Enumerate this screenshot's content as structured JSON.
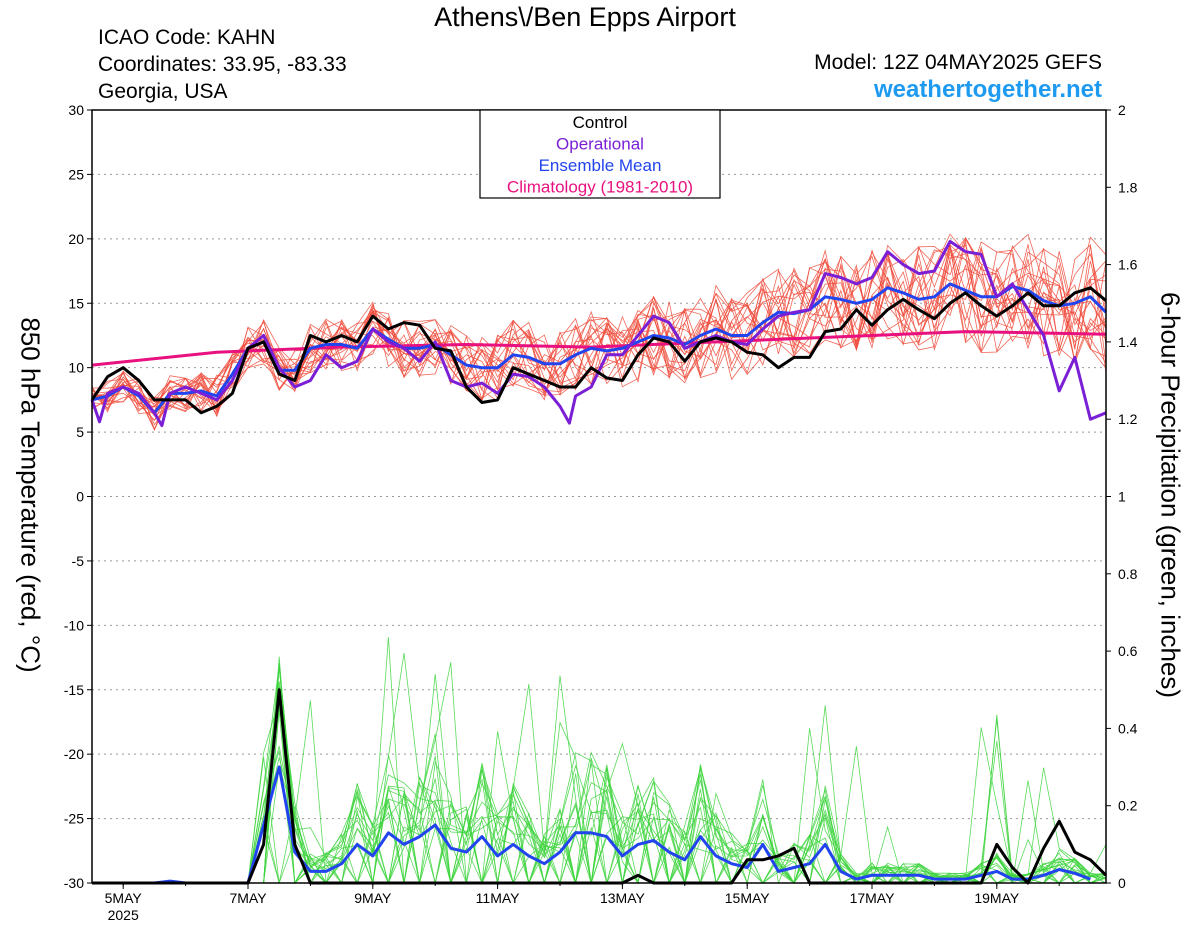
{
  "header": {
    "title": "Athens\\/Ben Epps Airport",
    "icao": "ICAO Code: KAHN",
    "coordinates": "Coordinates: 33.95, -83.33",
    "location": "Georgia, USA",
    "model": "Model: 12Z 04MAY2025 GEFS",
    "site": "weathertogether.net"
  },
  "colors": {
    "control": "#000000",
    "operational": "#7a1fd6",
    "ensemble_mean": "#2244ee",
    "climatology": "#e8117f",
    "members_temp": "#f04a3a",
    "members_precip": "#3dd43d",
    "site": "#1e9bf0"
  },
  "chart_data": {
    "type": "line",
    "ylabel": "850 hPa Temperature (red, °C)",
    "y2label": "6-hour Precipitation (green, inches)",
    "ylim": [
      -30,
      30
    ],
    "y2lim": [
      0,
      2
    ],
    "yticks": [
      "30",
      "25",
      "20",
      "15",
      "10",
      "5",
      "0",
      "-5",
      "-10",
      "-15",
      "-20",
      "-25",
      "-30"
    ],
    "y2ticks": [
      "2",
      "1.8",
      "1.6",
      "1.4",
      "1.2",
      "1",
      "0.8",
      "0.6",
      "0.4",
      "0.2",
      "0"
    ],
    "xlim": [
      0,
      16.25
    ],
    "x_unit": "days from 4 May 2025 12Z",
    "xticks": [
      {
        "label": "5MAY",
        "sub": "2025",
        "x": 0.5
      },
      {
        "label": "7MAY",
        "sub": "",
        "x": 2.5
      },
      {
        "label": "9MAY",
        "sub": "",
        "x": 4.5
      },
      {
        "label": "11MAY",
        "sub": "",
        "x": 6.5
      },
      {
        "label": "13MAY",
        "sub": "",
        "x": 8.5
      },
      {
        "label": "15MAY",
        "sub": "",
        "x": 10.5
      },
      {
        "label": "17MAY",
        "sub": "",
        "x": 12.5
      },
      {
        "label": "19MAY",
        "sub": "",
        "x": 14.5
      }
    ],
    "grid": true,
    "legend": {
      "placement": "top-center",
      "entries": [
        {
          "label": "Control",
          "color": "#000000"
        },
        {
          "label": "Operational",
          "color": "#7a1fd6"
        },
        {
          "label": "Ensemble Mean",
          "color": "#2244ee"
        },
        {
          "label": "Climatology (1981-2010)",
          "color": "#e8117f"
        }
      ]
    },
    "temperature": {
      "control": [
        [
          0,
          7.5
        ],
        [
          0.25,
          9.3
        ],
        [
          0.5,
          10
        ],
        [
          0.75,
          9
        ],
        [
          1,
          7.5
        ],
        [
          1.25,
          7.5
        ],
        [
          1.5,
          7.5
        ],
        [
          1.75,
          6.5
        ],
        [
          2,
          7
        ],
        [
          2.25,
          8
        ],
        [
          2.5,
          11.5
        ],
        [
          2.75,
          12
        ],
        [
          3,
          9.5
        ],
        [
          3.25,
          9
        ],
        [
          3.5,
          12.5
        ],
        [
          3.75,
          12
        ],
        [
          4,
          12.5
        ],
        [
          4.25,
          12
        ],
        [
          4.5,
          14
        ],
        [
          4.75,
          13
        ],
        [
          5,
          13.5
        ],
        [
          5.25,
          13.3
        ],
        [
          5.5,
          11.5
        ],
        [
          5.75,
          11.3
        ],
        [
          6,
          8.5
        ],
        [
          6.25,
          7.3
        ],
        [
          6.5,
          7.5
        ],
        [
          6.75,
          10
        ],
        [
          7,
          9.5
        ],
        [
          7.25,
          9
        ],
        [
          7.5,
          8.5
        ],
        [
          7.75,
          8.5
        ],
        [
          8,
          10
        ],
        [
          8.25,
          9.2
        ],
        [
          8.5,
          9
        ],
        [
          8.75,
          11
        ],
        [
          9,
          12.3
        ],
        [
          9.25,
          12
        ],
        [
          9.5,
          10.5
        ],
        [
          9.75,
          12
        ],
        [
          10,
          12.3
        ],
        [
          10.25,
          12
        ],
        [
          10.5,
          11.2
        ],
        [
          10.75,
          11
        ],
        [
          11,
          10
        ],
        [
          11.25,
          10.8
        ],
        [
          11.5,
          10.8
        ],
        [
          11.75,
          12.8
        ],
        [
          12,
          13
        ],
        [
          12.25,
          14.5
        ],
        [
          12.5,
          13.3
        ],
        [
          12.75,
          14.5
        ],
        [
          13,
          15.3
        ],
        [
          13.25,
          14.5
        ],
        [
          13.5,
          13.8
        ],
        [
          13.75,
          15
        ],
        [
          14,
          15.8
        ],
        [
          14.25,
          14.8
        ],
        [
          14.5,
          14
        ],
        [
          14.75,
          14.8
        ],
        [
          15,
          15.8
        ],
        [
          15.25,
          14.8
        ],
        [
          15.5,
          14.8
        ],
        [
          15.75,
          15.8
        ],
        [
          16,
          16.2
        ],
        [
          16.25,
          15.2
        ]
      ],
      "operational": [
        [
          0,
          7.5
        ],
        [
          0.12,
          5.8
        ],
        [
          0.25,
          8
        ],
        [
          0.5,
          8.5
        ],
        [
          0.75,
          8
        ],
        [
          1,
          6.5
        ],
        [
          1.12,
          5.5
        ],
        [
          1.25,
          8
        ],
        [
          1.5,
          8.5
        ],
        [
          1.75,
          8
        ],
        [
          2,
          7.5
        ],
        [
          2.25,
          9
        ],
        [
          2.5,
          11.5
        ],
        [
          2.75,
          12.5
        ],
        [
          3,
          10
        ],
        [
          3.25,
          8.5
        ],
        [
          3.5,
          9
        ],
        [
          3.75,
          11
        ],
        [
          4,
          10
        ],
        [
          4.25,
          10.5
        ],
        [
          4.5,
          13
        ],
        [
          4.75,
          12
        ],
        [
          5,
          11.5
        ],
        [
          5.25,
          10.5
        ],
        [
          5.5,
          12
        ],
        [
          5.75,
          9
        ],
        [
          6,
          8.5
        ],
        [
          6.25,
          8.8
        ],
        [
          6.5,
          8
        ],
        [
          6.75,
          9.5
        ],
        [
          7,
          9.3
        ],
        [
          7.25,
          8.5
        ],
        [
          7.5,
          7
        ],
        [
          7.65,
          5.7
        ],
        [
          7.75,
          7.8
        ],
        [
          8,
          8.5
        ],
        [
          8.25,
          11
        ],
        [
          8.5,
          11
        ],
        [
          8.75,
          12.5
        ],
        [
          9,
          14
        ],
        [
          9.25,
          13.5
        ],
        [
          9.5,
          11.5
        ],
        [
          9.75,
          12
        ],
        [
          10,
          12.5
        ],
        [
          10.25,
          12
        ],
        [
          10.5,
          11.8
        ],
        [
          10.75,
          13
        ],
        [
          11,
          14
        ],
        [
          11.25,
          14.3
        ],
        [
          11.5,
          14.5
        ],
        [
          11.75,
          17.3
        ],
        [
          12,
          17
        ],
        [
          12.25,
          16.5
        ],
        [
          12.5,
          17
        ],
        [
          12.75,
          19
        ],
        [
          13,
          18
        ],
        [
          13.25,
          17.3
        ],
        [
          13.5,
          17.5
        ],
        [
          13.75,
          19.8
        ],
        [
          14,
          19
        ],
        [
          14.25,
          18.8
        ],
        [
          14.5,
          15.5
        ],
        [
          14.75,
          16.5
        ],
        [
          15,
          14.5
        ],
        [
          15.25,
          12.5
        ],
        [
          15.5,
          8.2
        ],
        [
          15.75,
          10.8
        ],
        [
          16,
          6
        ],
        [
          16.25,
          6.5
        ]
      ],
      "ensemble_mean": [
        [
          0,
          7.5
        ],
        [
          0.25,
          7.8
        ],
        [
          0.5,
          8.5
        ],
        [
          0.75,
          7.8
        ],
        [
          1,
          6.5
        ],
        [
          1.25,
          8
        ],
        [
          1.5,
          8
        ],
        [
          1.75,
          8.2
        ],
        [
          2,
          7.8
        ],
        [
          2.25,
          9.5
        ],
        [
          2.5,
          11.5
        ],
        [
          2.75,
          12
        ],
        [
          3,
          9.8
        ],
        [
          3.25,
          9.8
        ],
        [
          3.5,
          11.5
        ],
        [
          3.75,
          11.8
        ],
        [
          4,
          11.8
        ],
        [
          4.25,
          11.5
        ],
        [
          4.5,
          13
        ],
        [
          4.75,
          12.2
        ],
        [
          5,
          11.5
        ],
        [
          5.25,
          11.5
        ],
        [
          5.5,
          11.8
        ],
        [
          5.75,
          11
        ],
        [
          6,
          10.2
        ],
        [
          6.25,
          10
        ],
        [
          6.5,
          10
        ],
        [
          6.75,
          11
        ],
        [
          7,
          10.8
        ],
        [
          7.25,
          10.3
        ],
        [
          7.5,
          10.3
        ],
        [
          7.75,
          11
        ],
        [
          8,
          11.5
        ],
        [
          8.25,
          11.3
        ],
        [
          8.5,
          11.5
        ],
        [
          8.75,
          12
        ],
        [
          9,
          12.5
        ],
        [
          9.25,
          12.3
        ],
        [
          9.5,
          11.8
        ],
        [
          9.75,
          12.5
        ],
        [
          10,
          13
        ],
        [
          10.25,
          12.5
        ],
        [
          10.5,
          12.5
        ],
        [
          10.75,
          13.5
        ],
        [
          11,
          14.3
        ],
        [
          11.25,
          14.2
        ],
        [
          11.5,
          14.5
        ],
        [
          11.75,
          15.5
        ],
        [
          12,
          15.3
        ],
        [
          12.25,
          15
        ],
        [
          12.5,
          15.3
        ],
        [
          12.75,
          16.2
        ],
        [
          13,
          15.8
        ],
        [
          13.25,
          15.3
        ],
        [
          13.5,
          15.5
        ],
        [
          13.75,
          16.5
        ],
        [
          14,
          16
        ],
        [
          14.25,
          15.5
        ],
        [
          14.5,
          15.5
        ],
        [
          14.75,
          16.3
        ],
        [
          15,
          16
        ],
        [
          15.25,
          15.2
        ],
        [
          15.5,
          14.8
        ],
        [
          15.75,
          15
        ],
        [
          16,
          15.5
        ],
        [
          16.25,
          14.3
        ]
      ],
      "climatology": [
        [
          0,
          10.2
        ],
        [
          2,
          11.2
        ],
        [
          4,
          11.6
        ],
        [
          6,
          11.8
        ],
        [
          8,
          11.6
        ],
        [
          10,
          12
        ],
        [
          12,
          12.4
        ],
        [
          14,
          12.8
        ],
        [
          16.25,
          12.6
        ]
      ],
      "member_count": 20
    },
    "precipitation": {
      "control": [
        [
          0,
          0
        ],
        [
          2.5,
          0
        ],
        [
          2.75,
          0.1
        ],
        [
          3,
          0.5
        ],
        [
          3.25,
          0.1
        ],
        [
          3.5,
          0
        ],
        [
          8.5,
          0
        ],
        [
          8.75,
          0.02
        ],
        [
          9,
          0
        ],
        [
          10.25,
          0
        ],
        [
          10.5,
          0.06
        ],
        [
          10.75,
          0.06
        ],
        [
          11,
          0.07
        ],
        [
          11.25,
          0.09
        ],
        [
          11.5,
          0
        ],
        [
          14.25,
          0
        ],
        [
          14.5,
          0.1
        ],
        [
          14.75,
          0.04
        ],
        [
          15,
          0
        ],
        [
          15.25,
          0.09
        ],
        [
          15.5,
          0.16
        ],
        [
          15.75,
          0.08
        ],
        [
          16,
          0.06
        ],
        [
          16.25,
          0.02
        ]
      ],
      "ensemble_mean": [
        [
          0,
          0
        ],
        [
          1,
          0
        ],
        [
          1.25,
          0.005
        ],
        [
          1.5,
          0
        ],
        [
          2.5,
          0
        ],
        [
          2.75,
          0.15
        ],
        [
          3,
          0.3
        ],
        [
          3.25,
          0.08
        ],
        [
          3.5,
          0.03
        ],
        [
          3.75,
          0.03
        ],
        [
          4,
          0.05
        ],
        [
          4.25,
          0.1
        ],
        [
          4.5,
          0.07
        ],
        [
          4.75,
          0.13
        ],
        [
          5,
          0.1
        ],
        [
          5.25,
          0.12
        ],
        [
          5.5,
          0.15
        ],
        [
          5.75,
          0.09
        ],
        [
          6,
          0.08
        ],
        [
          6.25,
          0.12
        ],
        [
          6.5,
          0.07
        ],
        [
          6.75,
          0.1
        ],
        [
          7,
          0.07
        ],
        [
          7.25,
          0.05
        ],
        [
          7.5,
          0.08
        ],
        [
          7.75,
          0.13
        ],
        [
          8,
          0.13
        ],
        [
          8.25,
          0.12
        ],
        [
          8.5,
          0.07
        ],
        [
          8.75,
          0.1
        ],
        [
          9,
          0.11
        ],
        [
          9.25,
          0.08
        ],
        [
          9.5,
          0.06
        ],
        [
          9.75,
          0.12
        ],
        [
          10,
          0.07
        ],
        [
          10.25,
          0.05
        ],
        [
          10.5,
          0.04
        ],
        [
          10.75,
          0.1
        ],
        [
          11,
          0.03
        ],
        [
          11.25,
          0.04
        ],
        [
          11.5,
          0.05
        ],
        [
          11.75,
          0.1
        ],
        [
          12,
          0.03
        ],
        [
          12.25,
          0.01
        ],
        [
          12.5,
          0.02
        ],
        [
          12.75,
          0.02
        ],
        [
          13,
          0.02
        ],
        [
          13.25,
          0.02
        ],
        [
          13.5,
          0.01
        ],
        [
          13.75,
          0.01
        ],
        [
          14,
          0.01
        ],
        [
          14.25,
          0.02
        ],
        [
          14.5,
          0.03
        ],
        [
          14.75,
          0.01
        ],
        [
          15,
          0.01
        ],
        [
          15.25,
          0.02
        ],
        [
          15.5,
          0.035
        ],
        [
          15.75,
          0.025
        ],
        [
          16,
          0.01
        ]
      ],
      "member_count": 20
    }
  }
}
